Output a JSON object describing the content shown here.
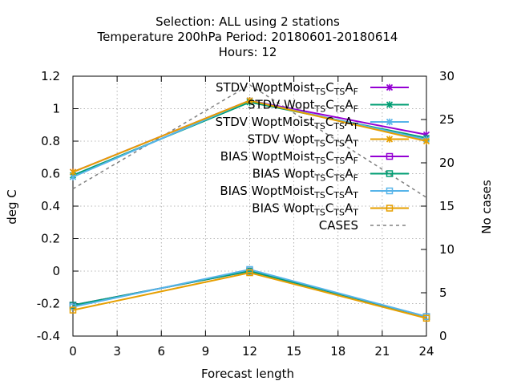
{
  "chart_data": {
    "type": "line",
    "title_lines": [
      "Selection: ALL using     2 stations",
      "Temperature 200hPa   Period: 20180601-20180614",
      "Hours:  12"
    ],
    "xlabel": "Forecast length",
    "ylabel": "deg C",
    "y2label": "No cases",
    "x": [
      0,
      12,
      24
    ],
    "xlim": [
      0,
      24
    ],
    "ylim": [
      -0.4,
      1.2
    ],
    "y2lim": [
      0,
      30
    ],
    "xticks": [
      "0",
      "3",
      "6",
      "9",
      "12",
      "15",
      "18",
      "21",
      "24"
    ],
    "yticks": [
      "-0.4",
      "-0.2",
      "0",
      "0.2",
      "0.4",
      "0.6",
      "0.8",
      "1",
      "1.2"
    ],
    "y2ticks": [
      "0",
      "5",
      "10",
      "15",
      "20",
      "25",
      "30"
    ],
    "grid": true,
    "legend_position": "top-right",
    "series": [
      {
        "name": "STDV WoptMoist_TS C_TS A_F",
        "base": "STDV WoptMoist",
        "sub": "TS",
        "suffix": "F",
        "values": [
          0.61,
          1.05,
          0.84
        ],
        "color": "#9400d3",
        "marker": "x-star",
        "axis": "y1"
      },
      {
        "name": "STDV Wopt_TS C_TS A_F",
        "base": "STDV Wopt",
        "sub": "TS",
        "suffix": "F",
        "values": [
          0.59,
          1.04,
          0.82
        ],
        "color": "#009e73",
        "marker": "x-star",
        "axis": "y1"
      },
      {
        "name": "STDV WoptMoist_TS C_TS A_T",
        "base": "STDV WoptMoist",
        "sub": "TS",
        "suffix": "T",
        "values": [
          0.58,
          1.05,
          0.81
        ],
        "color": "#56b4e9",
        "marker": "x-star",
        "axis": "y1"
      },
      {
        "name": "STDV Wopt_TS C_TS A_T",
        "base": "STDV Wopt",
        "sub": "TS",
        "suffix": "T",
        "values": [
          0.61,
          1.05,
          0.8
        ],
        "color": "#e69f00",
        "marker": "x-star",
        "axis": "y1"
      },
      {
        "name": "BIAS WoptMoist_TS C_TS A_F",
        "base": "BIAS WoptMoist",
        "sub": "TS",
        "suffix": "F",
        "values": [
          -0.21,
          0.0,
          -0.28
        ],
        "color": "#9400d3",
        "marker": "square",
        "axis": "y1"
      },
      {
        "name": "BIAS Wopt_TS C_TS A_F",
        "base": "BIAS Wopt",
        "sub": "TS",
        "suffix": "F",
        "values": [
          -0.21,
          0.0,
          -0.28
        ],
        "color": "#009e73",
        "marker": "square",
        "axis": "y1"
      },
      {
        "name": "BIAS WoptMoist_TS C_TS A_T",
        "base": "BIAS WoptMoist",
        "sub": "TS",
        "suffix": "T",
        "values": [
          -0.22,
          0.01,
          -0.28
        ],
        "color": "#56b4e9",
        "marker": "square",
        "axis": "y1"
      },
      {
        "name": "BIAS Wopt_TS C_TS A_T",
        "base": "BIAS Wopt",
        "sub": "TS",
        "suffix": "T",
        "values": [
          -0.24,
          -0.01,
          -0.29
        ],
        "color": "#e69f00",
        "marker": "square",
        "axis": "y1"
      },
      {
        "name": "CASES",
        "base": "CASES",
        "sub": "",
        "suffix": "",
        "values": [
          17,
          29,
          16
        ],
        "color": "#808080",
        "marker": "none",
        "dashed": true,
        "axis": "y2"
      }
    ]
  }
}
